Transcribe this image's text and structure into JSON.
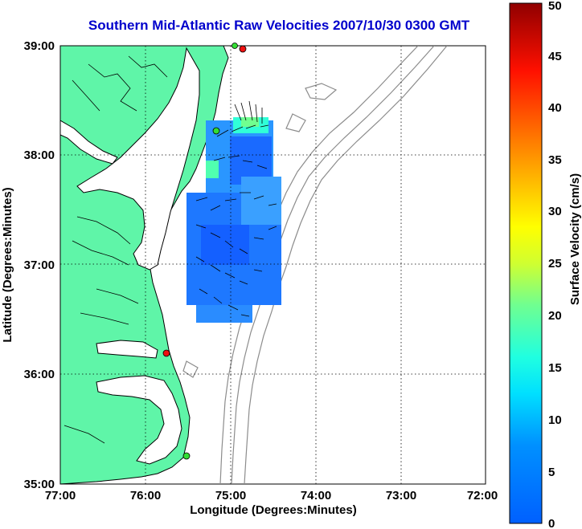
{
  "title": "Southern Mid-Atlantic Raw Velocities 2007/10/30 0300 GMT",
  "map": {
    "xlabel": "Longitude (Degrees:Minutes)",
    "ylabel": "Latitude (Degrees:Minutes)",
    "lon_ticks": [
      "77:00",
      "76:00",
      "75:00",
      "74:00",
      "73:00",
      "72:00"
    ],
    "lat_ticks": [
      "35:00",
      "36:00",
      "37:00",
      "38:00",
      "39:00"
    ],
    "lon_range": [
      -77,
      -72
    ],
    "lat_range": [
      35,
      39
    ],
    "colors": {
      "land": "#5ff5a8",
      "coast": "#000000",
      "bathymetry": "#8c8c8c",
      "station_green": "#33dd33",
      "station_red": "#ee1111"
    }
  },
  "colorbar": {
    "label": "Surface Velocity (cm/s)",
    "ticks": [
      "0",
      "5",
      "10",
      "15",
      "20",
      "25",
      "30",
      "35",
      "40",
      "45",
      "50"
    ],
    "min": 0,
    "max": 50
  }
}
